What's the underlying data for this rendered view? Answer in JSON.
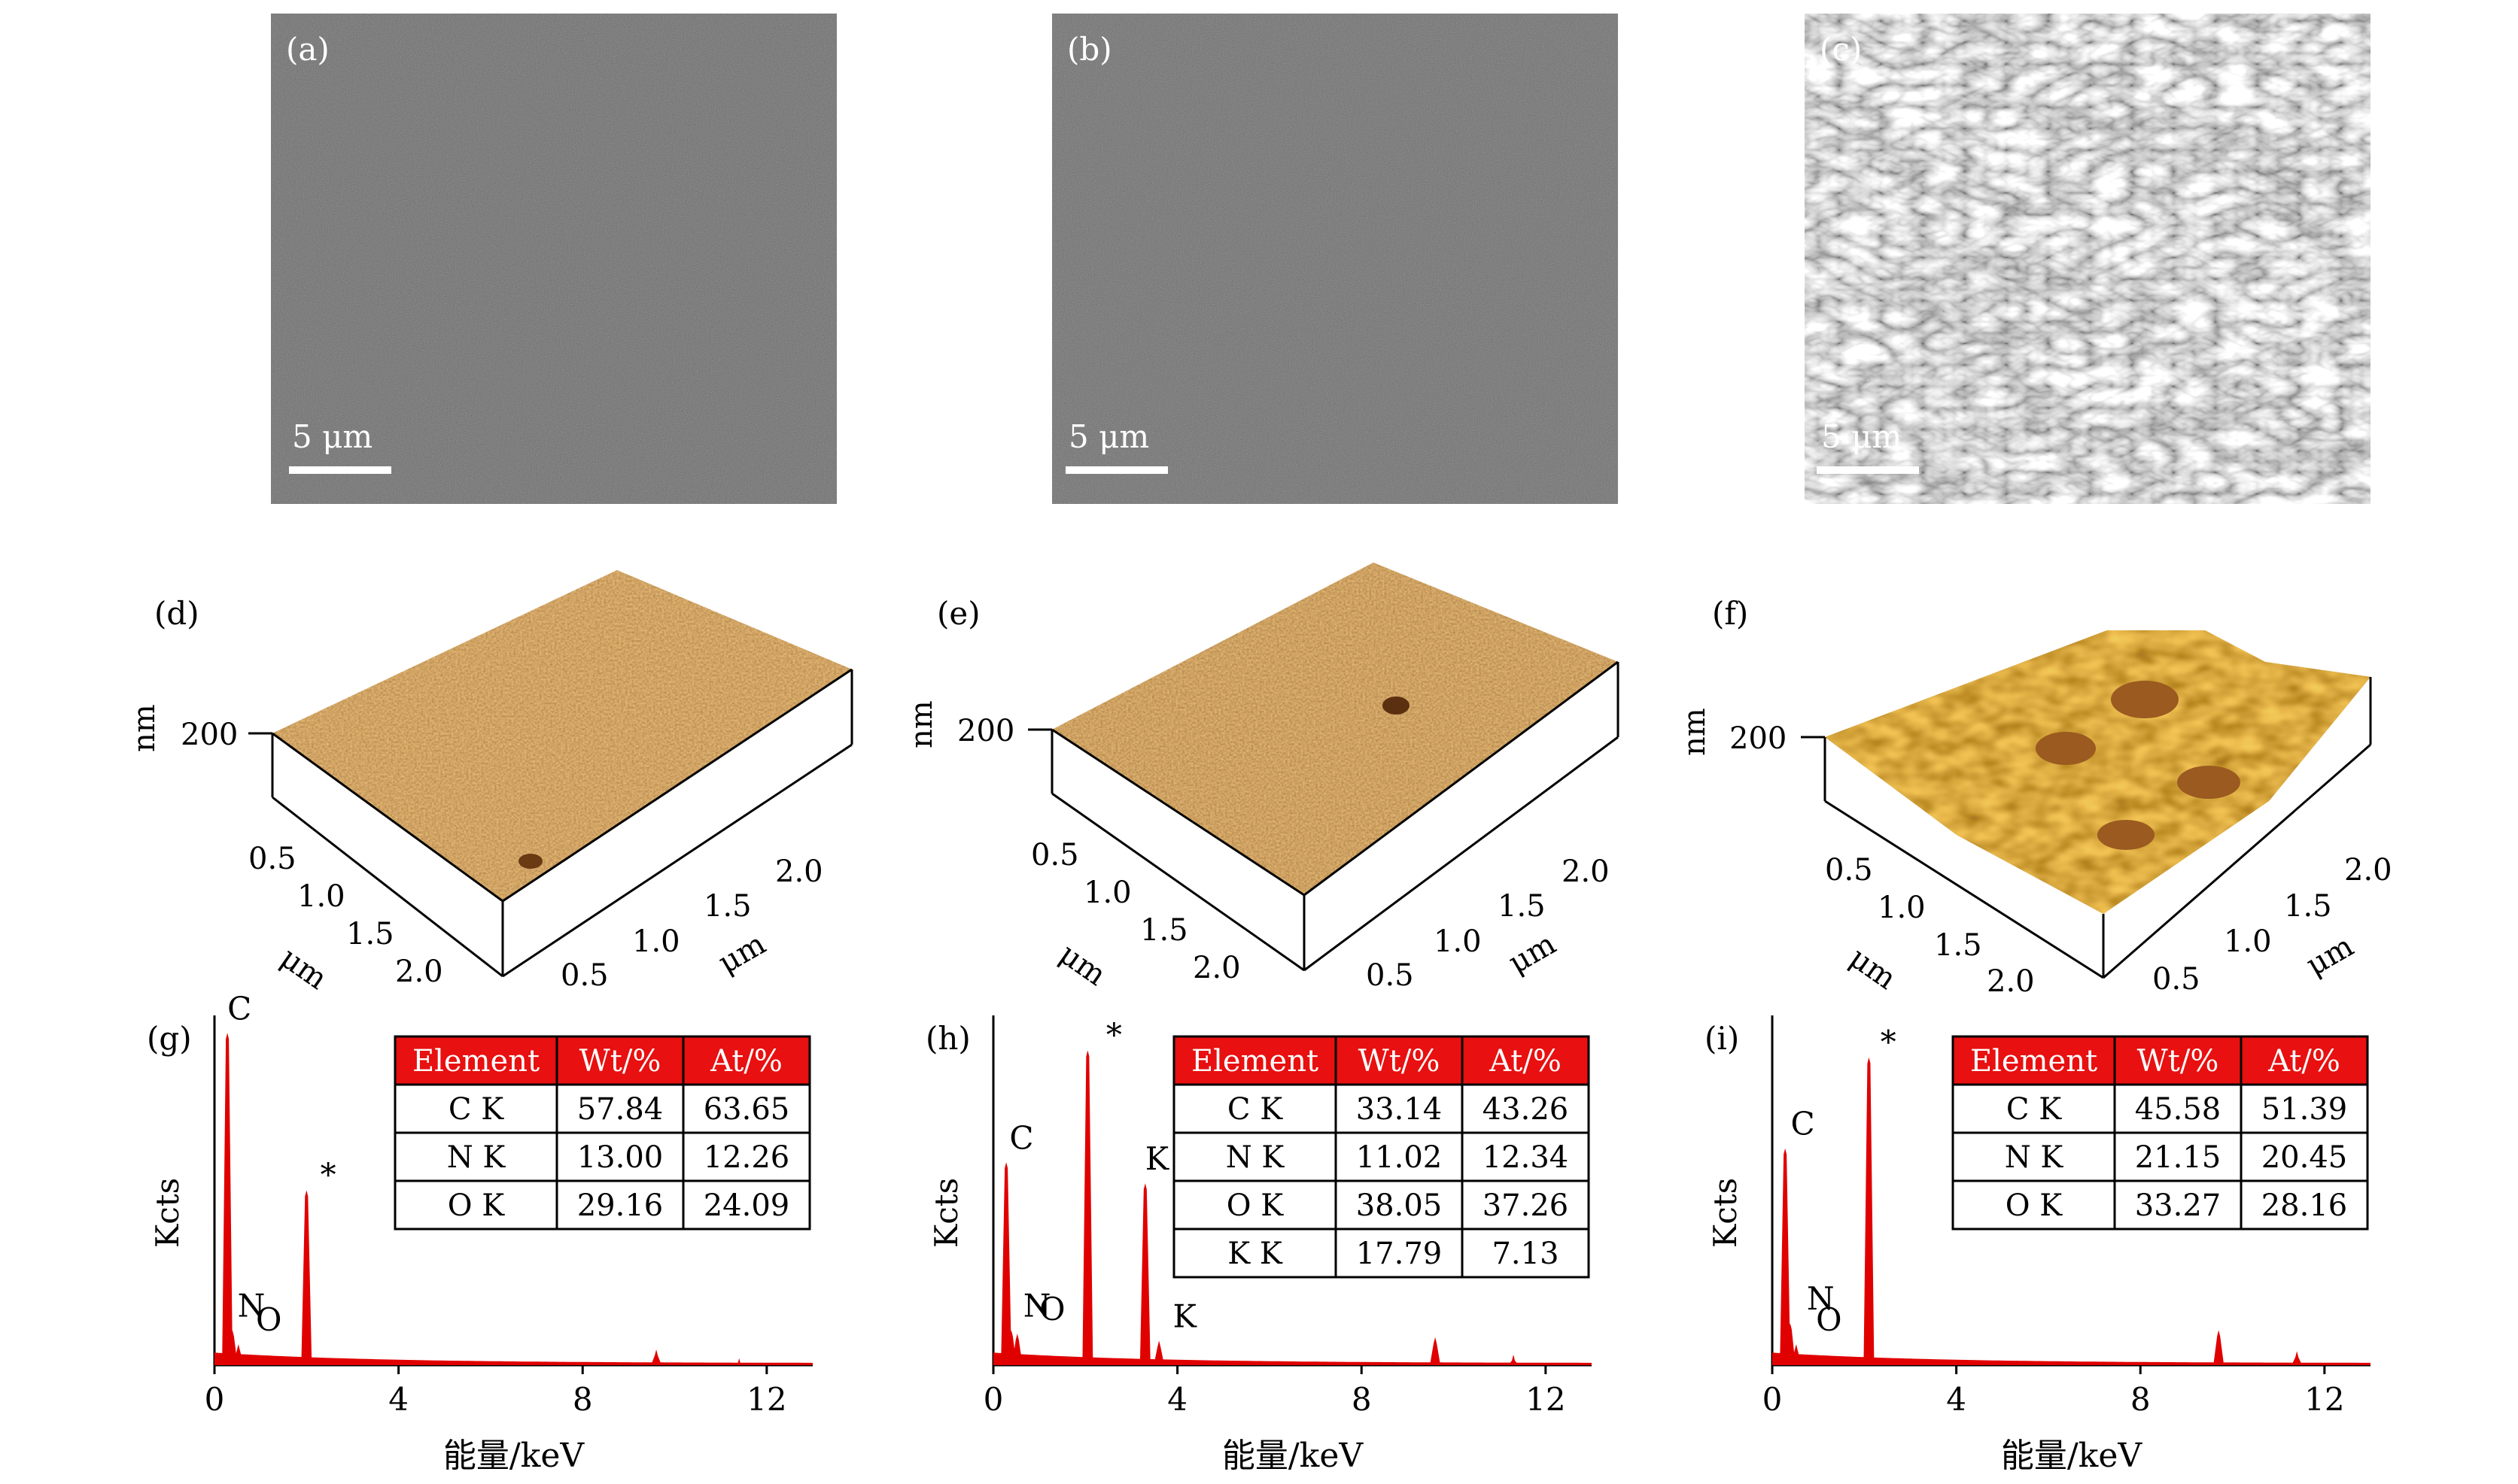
{
  "colors": {
    "sem_gray": "#6c6c6c",
    "afm_light": "#c8904a",
    "afm_dark": "#8a4f1f",
    "eds_red": "#e00000",
    "table_header": "#e81010"
  },
  "sem_panels": [
    {
      "label": "(a)",
      "scale_bar": "5 μm"
    },
    {
      "label": "(b)",
      "scale_bar": "5 μm"
    },
    {
      "label": "(c)",
      "scale_bar": "5 μm"
    }
  ],
  "afm_panels": [
    {
      "label": "(d)",
      "z_label": "nm",
      "z_tick": "200",
      "left_ticks": [
        "0.5",
        "1.0",
        "1.5",
        "2.0"
      ],
      "right_ticks": [
        "0.5",
        "1.0",
        "1.5",
        "2.0"
      ],
      "left_axis": "μm",
      "right_axis": "μm"
    },
    {
      "label": "(e)",
      "z_label": "nm",
      "z_tick": "200",
      "left_ticks": [
        "0.5",
        "1.0",
        "1.5",
        "2.0"
      ],
      "right_ticks": [
        "0.5",
        "1.0",
        "1.5",
        "2.0"
      ],
      "left_axis": "μm",
      "right_axis": "μm"
    },
    {
      "label": "(f)",
      "z_label": "nm",
      "z_tick": "200",
      "left_ticks": [
        "0.5",
        "1.0",
        "1.5",
        "2.0"
      ],
      "right_ticks": [
        "0.5",
        "1.0",
        "1.5",
        "2.0"
      ],
      "left_axis": "μm",
      "right_axis": "μm"
    }
  ],
  "chart_data": [
    {
      "type": "bar",
      "label": "(g)",
      "xlabel": "能量/keV",
      "ylabel": "Kcts",
      "xlim": [
        0,
        13
      ],
      "xticks": [
        "0",
        "4",
        "8",
        "12"
      ],
      "peaks": [
        {
          "name": "C",
          "x": 0.28,
          "value": 0.95
        },
        {
          "name": "N",
          "x": 0.39,
          "value": 0.1
        },
        {
          "name": "O",
          "x": 0.52,
          "value": 0.06
        },
        {
          "name": "*",
          "x": 2.0,
          "value": 0.5
        },
        {
          "name": "",
          "x": 9.6,
          "value": 0.045
        },
        {
          "name": "",
          "x": 11.4,
          "value": 0.02
        }
      ],
      "annotations": [
        {
          "text": "C",
          "x": 0.28
        },
        {
          "text": "N",
          "x": 0.5
        },
        {
          "text": "O",
          "x": 0.9
        },
        {
          "text": "*",
          "x": 2.3
        }
      ],
      "table": {
        "headers": [
          "Element",
          "Wt/%",
          "At/%"
        ],
        "rows": [
          [
            "C K",
            "57.84",
            "63.65"
          ],
          [
            "N K",
            "13.00",
            "12.26"
          ],
          [
            "O K",
            "29.16",
            "24.09"
          ]
        ]
      }
    },
    {
      "type": "bar",
      "label": "(h)",
      "xlabel": "能量/keV",
      "ylabel": "Kcts",
      "xlim": [
        0,
        13
      ],
      "xticks": [
        "0",
        "4",
        "8",
        "12"
      ],
      "peaks": [
        {
          "name": "C",
          "x": 0.28,
          "value": 0.58
        },
        {
          "name": "N",
          "x": 0.39,
          "value": 0.1
        },
        {
          "name": "O",
          "x": 0.52,
          "value": 0.09
        },
        {
          "name": "*",
          "x": 2.05,
          "value": 0.9
        },
        {
          "name": "K",
          "x": 3.3,
          "value": 0.52
        },
        {
          "name": "K",
          "x": 3.6,
          "value": 0.07
        },
        {
          "name": "",
          "x": 9.6,
          "value": 0.08
        },
        {
          "name": "",
          "x": 11.3,
          "value": 0.03
        }
      ],
      "annotations": [
        {
          "text": "C",
          "x": 0.35
        },
        {
          "text": "N",
          "x": 0.65
        },
        {
          "text": "O",
          "x": 1.0
        },
        {
          "text": "*",
          "x": 2.45
        },
        {
          "text": "K",
          "x": 3.3
        },
        {
          "text": "K",
          "x": 3.9
        }
      ],
      "table": {
        "headers": [
          "Element",
          "Wt/%",
          "At/%"
        ],
        "rows": [
          [
            "C K",
            "33.14",
            "43.26"
          ],
          [
            "N K",
            "11.02",
            "12.34"
          ],
          [
            "O K",
            "38.05",
            "37.26"
          ],
          [
            "K K",
            "17.79",
            "7.13"
          ]
        ]
      }
    },
    {
      "type": "bar",
      "label": "(i)",
      "xlabel": "能量/keV",
      "ylabel": "Kcts",
      "xlim": [
        0,
        13
      ],
      "xticks": [
        "0",
        "4",
        "8",
        "12"
      ],
      "peaks": [
        {
          "name": "C",
          "x": 0.28,
          "value": 0.62
        },
        {
          "name": "N",
          "x": 0.39,
          "value": 0.12
        },
        {
          "name": "O",
          "x": 0.52,
          "value": 0.06
        },
        {
          "name": "*",
          "x": 2.1,
          "value": 0.88
        },
        {
          "name": "",
          "x": 9.7,
          "value": 0.1
        },
        {
          "name": "",
          "x": 11.4,
          "value": 0.04
        }
      ],
      "annotations": [
        {
          "text": "C",
          "x": 0.4
        },
        {
          "text": "N",
          "x": 0.75
        },
        {
          "text": "O",
          "x": 0.95
        },
        {
          "text": "*",
          "x": 2.35
        }
      ],
      "table": {
        "headers": [
          "Element",
          "Wt/%",
          "At/%"
        ],
        "rows": [
          [
            "C K",
            "45.58",
            "51.39"
          ],
          [
            "N K",
            "21.15",
            "20.45"
          ],
          [
            "O K",
            "33.27",
            "28.16"
          ]
        ]
      }
    }
  ]
}
